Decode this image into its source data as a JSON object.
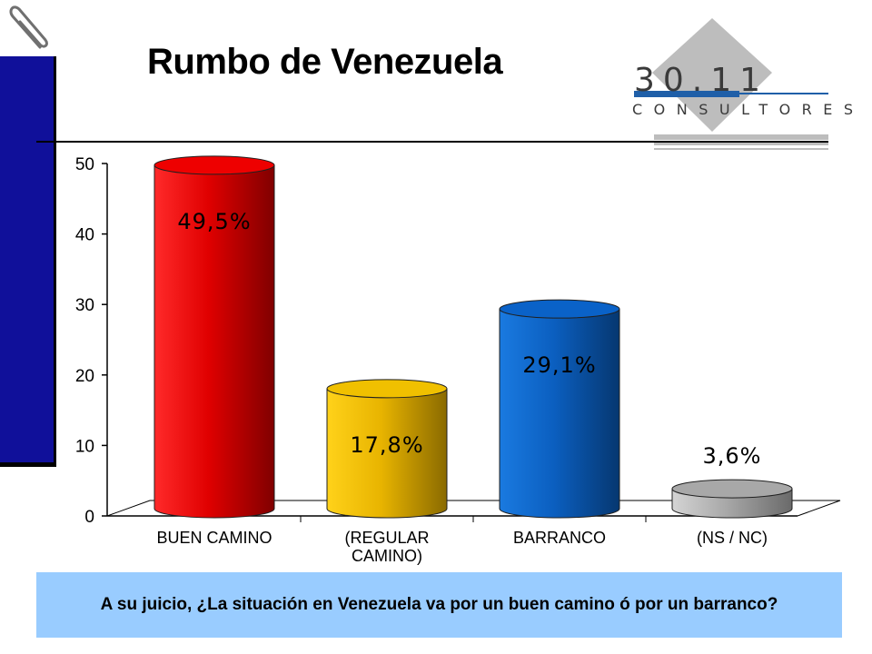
{
  "slide": {
    "title": "Rumbo de Venezuela"
  },
  "logo": {
    "number": "30.11",
    "subtitle": "CONSULTORES"
  },
  "question": {
    "text": "A su juicio, ¿La situación en Venezuela va por un buen camino ó por un barranco?"
  },
  "icons": {
    "corner": "paperclip-icon"
  },
  "colors": {
    "sidebar": "#10109a",
    "question_bg": "#99ccff",
    "logo_blue": "#1f5fa8"
  },
  "chart_data": {
    "type": "bar",
    "categories": [
      [
        "BUEN CAMINO"
      ],
      [
        "(REGULAR",
        "CAMINO)"
      ],
      [
        "BARRANCO"
      ],
      [
        "(NS / NC)"
      ]
    ],
    "values": [
      49.5,
      17.8,
      29.1,
      3.6
    ],
    "data_labels": [
      "49,5%",
      "17,8%",
      "29,1%",
      "3,6%"
    ],
    "colors": [
      "#ee0000",
      "#f0c000",
      "#0a62c8",
      "#a8a8a8"
    ],
    "ylim": [
      0,
      50
    ],
    "yticks": [
      "0",
      "10",
      "20",
      "30",
      "40",
      "50"
    ],
    "style": "3d-cylinder",
    "legend": "none"
  }
}
